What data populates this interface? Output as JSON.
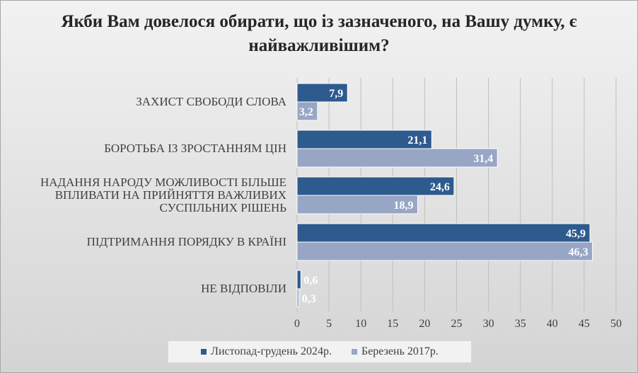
{
  "chart_data": {
    "type": "bar",
    "orientation": "horizontal",
    "title": "Якби Вам довелося обирати, що із зазначеного, на Вашу думку, є найважливішим?",
    "categories": [
      [
        "ЗАХИСТ СВОБОДИ СЛОВА"
      ],
      [
        "БОРОТЬБА ІЗ ЗРОСТАННЯМ ЦІН"
      ],
      [
        "НАДАННЯ НАРОДУ МОЖЛИВОСТІ БІЛЬШЕ",
        "ВПЛИВАТИ НА ПРИЙНЯТТЯ ВАЖЛИВИХ",
        "СУСПІЛЬНИХ РІШЕНЬ"
      ],
      [
        "ПІДТРИМАННЯ ПОРЯДКУ В КРАЇНІ"
      ],
      [
        "НЕ ВІДПОВІЛИ"
      ]
    ],
    "series": [
      {
        "name": "Листопад-грудень 2024р.",
        "color": "#2e5b8e",
        "values": [
          7.9,
          21.1,
          24.6,
          45.9,
          0.6
        ],
        "labels": [
          "7,9",
          "21,1",
          "24,6",
          "45,9",
          "0,6"
        ]
      },
      {
        "name": "Березень 2017р.",
        "color": "#97a6c4",
        "values": [
          3.2,
          31.4,
          18.9,
          46.3,
          0.3
        ],
        "labels": [
          "3,2",
          "31,4",
          "18,9",
          "46,3",
          "0,3"
        ]
      }
    ],
    "xlim": [
      0,
      50
    ],
    "xticks": [
      "0",
      "5",
      "10",
      "15",
      "20",
      "25",
      "30",
      "35",
      "40",
      "45",
      "50"
    ],
    "grid": true,
    "legend_position": "bottom"
  }
}
